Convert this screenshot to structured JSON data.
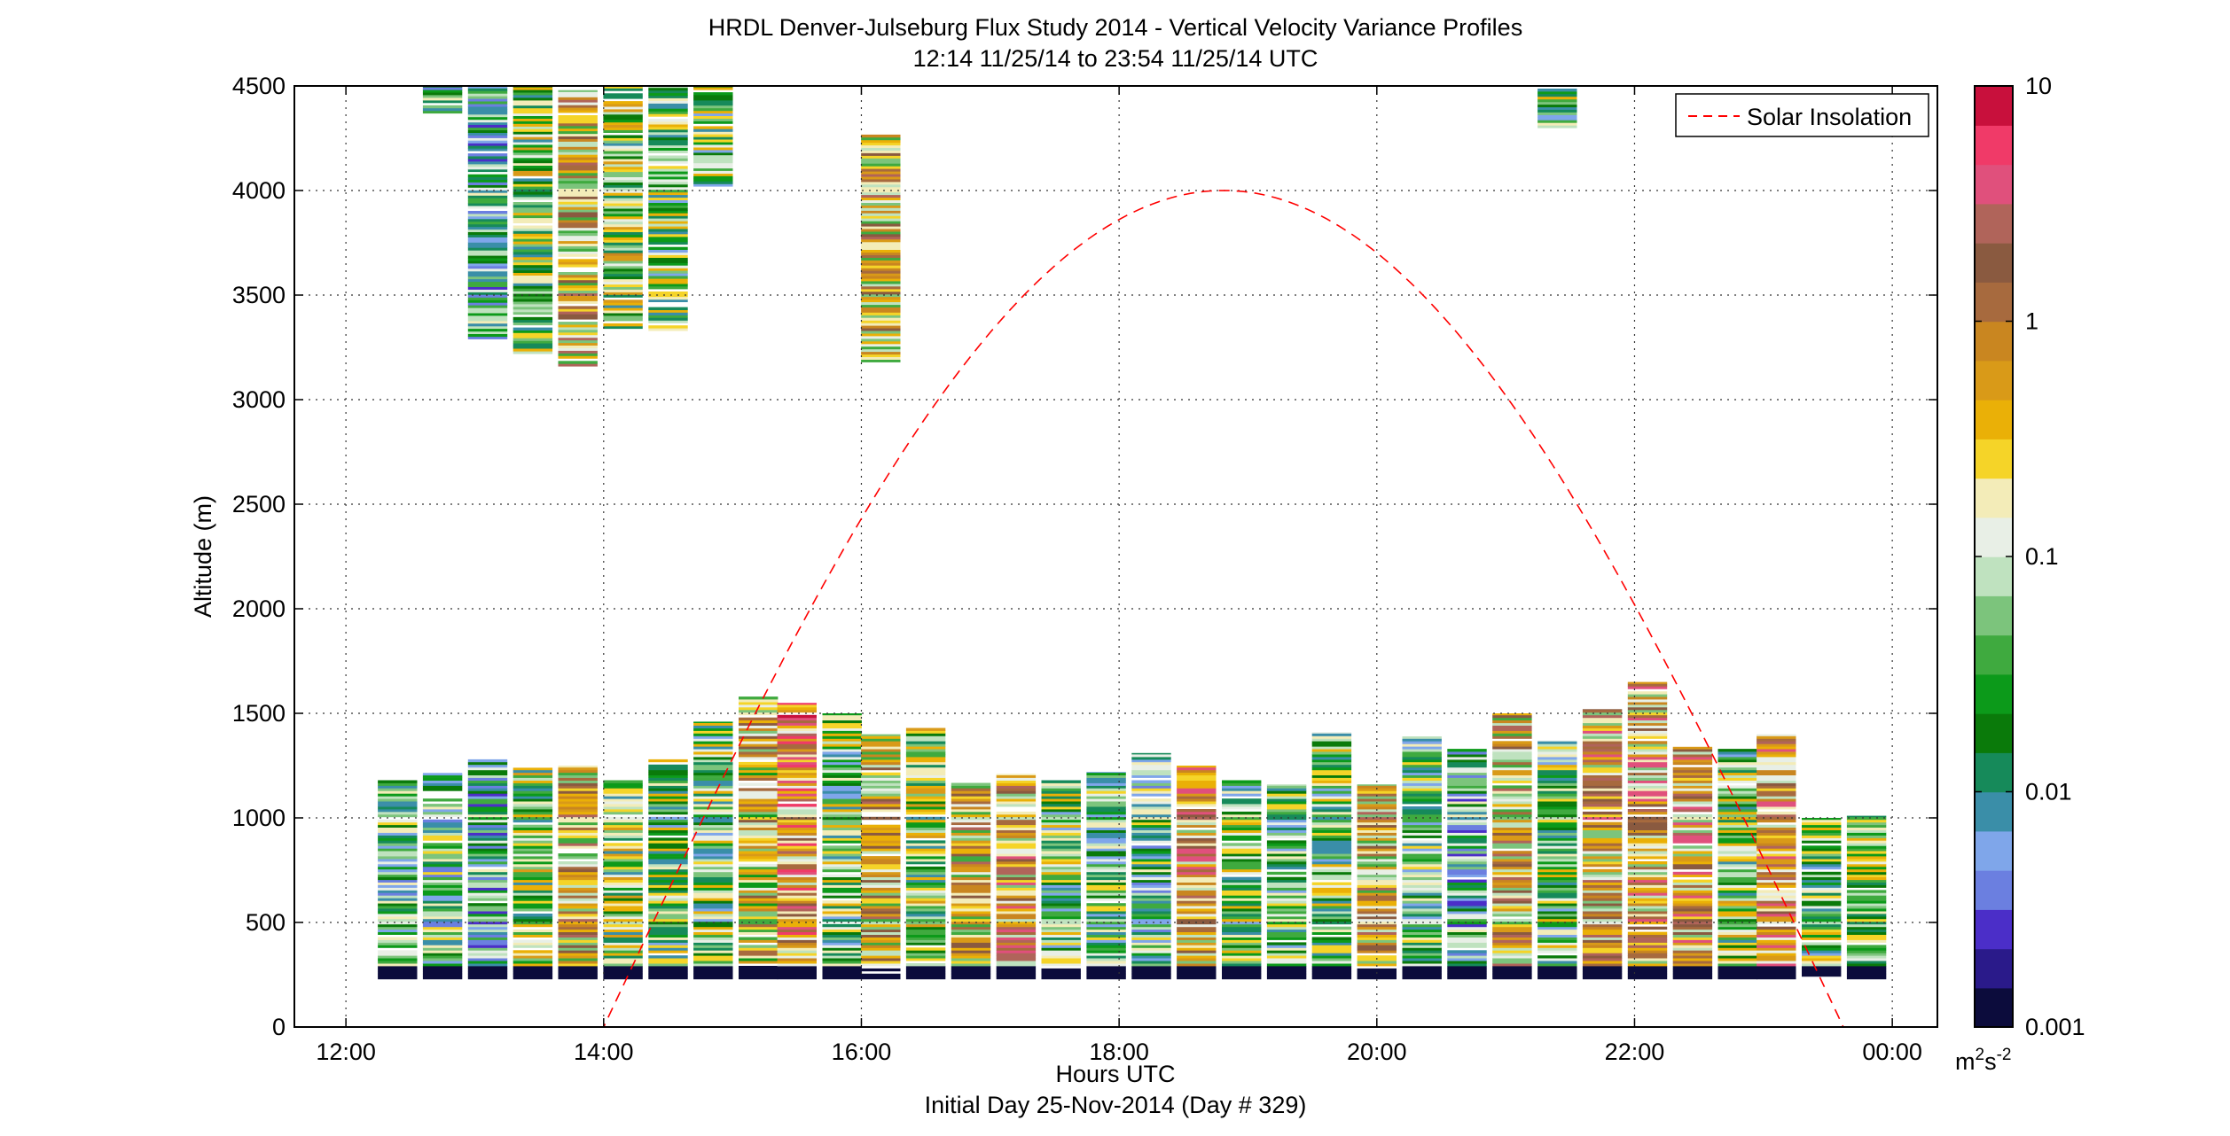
{
  "chart_data": {
    "type": "heatmap",
    "title_line1": "HRDL Denver-Julseburg Flux Study 2014 - Vertical Velocity Variance Profiles",
    "title_line2": "12:14 11/25/14 to 23:54 11/25/14  UTC",
    "xlabel": "Hours UTC",
    "xlabel_sub": "Initial Day 25-Nov-2014 (Day # 329)",
    "ylabel": "Altitude (m)",
    "xlim": [
      11.6,
      24.35
    ],
    "ylim": [
      0,
      4500
    ],
    "x_ticks": [
      12,
      14,
      16,
      18,
      20,
      22,
      24
    ],
    "x_tick_labels": [
      "12:00",
      "14:00",
      "16:00",
      "18:00",
      "20:00",
      "22:00",
      "00:00"
    ],
    "y_ticks": [
      0,
      500,
      1000,
      1500,
      2000,
      2500,
      3000,
      3500,
      4000,
      4500
    ],
    "y_tick_labels": [
      "0",
      "500",
      "1000",
      "1500",
      "2000",
      "2500",
      "3000",
      "3500",
      "4000",
      "4500"
    ],
    "grid": true,
    "legend": {
      "position": "top-right",
      "entries": [
        {
          "label": "Solar Insolation",
          "color": "#ff0000",
          "style": "dashed"
        }
      ]
    },
    "colorbar": {
      "scale": "log",
      "range": [
        0.001,
        10
      ],
      "tick_values": [
        0.001,
        0.01,
        0.1,
        1,
        10
      ],
      "tick_labels": [
        "0.001",
        "0.01",
        "0.1",
        "1",
        "10"
      ],
      "unit": "m2s-2",
      "colors": [
        "#0c0c3c",
        "#2a1a8a",
        "#4b2ec8",
        "#6b7fe0",
        "#7fa6ea",
        "#3a8ea8",
        "#168a5a",
        "#0a7a0a",
        "#0c9a1a",
        "#3faa3f",
        "#7cc47c",
        "#bfe2bf",
        "#e8efe6",
        "#f3ecb8",
        "#f5d428",
        "#eab007",
        "#d99a18",
        "#c98620",
        "#a76a3e",
        "#8a5a40",
        "#b0645a",
        "#e0507c",
        "#f03a68",
        "#c8103c"
      ]
    },
    "heatmap_x_range": [
      12.233,
      23.9
    ],
    "column_width_hours": 0.333,
    "solar_insolation": {
      "peak_hour": 18.78,
      "peak_altitude_equiv": 4000,
      "zero_crossings_hours": [
        14.0,
        23.62
      ]
    },
    "columns": [
      {
        "x": 12.4,
        "lower_top": 1180,
        "upper": null,
        "median": 0.035
      },
      {
        "x": 12.75,
        "lower_top": 1215,
        "upper": [
          4370,
          4500
        ],
        "median": 0.03
      },
      {
        "x": 13.1,
        "lower_top": 1280,
        "upper": [
          3290,
          4500
        ],
        "median": 0.02
      },
      {
        "x": 13.45,
        "lower_top": 1240,
        "upper": [
          3220,
          4500
        ],
        "median": 0.06
      },
      {
        "x": 13.8,
        "lower_top": 1250,
        "upper": [
          3160,
          4480
        ],
        "median": 0.3
      },
      {
        "x": 14.15,
        "lower_top": 1190,
        "upper": [
          3340,
          4500
        ],
        "median": 0.08
      },
      {
        "x": 14.5,
        "lower_top": 1280,
        "upper": [
          3330,
          4500
        ],
        "median": 0.05
      },
      {
        "x": 14.85,
        "lower_top": 1460,
        "upper": [
          4020,
          4500
        ],
        "median": 0.05
      },
      {
        "x": 15.2,
        "lower_top": 1580,
        "upper": null,
        "median": 0.2
      },
      {
        "x": 15.5,
        "lower_top": 1550,
        "upper": null,
        "median": 0.8
      },
      {
        "x": 15.85,
        "lower_top": 1500,
        "upper": null,
        "median": 0.05
      },
      {
        "x": 16.15,
        "lower_top": 1400,
        "upper": [
          3180,
          4280
        ],
        "median": 0.3
      },
      {
        "x": 16.5,
        "lower_top": 1430,
        "upper": null,
        "median": 0.08
      },
      {
        "x": 16.85,
        "lower_top": 1180,
        "upper": null,
        "median": 0.3
      },
      {
        "x": 17.2,
        "lower_top": 1210,
        "upper": null,
        "median": 0.5
      },
      {
        "x": 17.55,
        "lower_top": 1180,
        "upper": null,
        "median": 0.05
      },
      {
        "x": 17.9,
        "lower_top": 1220,
        "upper": null,
        "median": 0.04
      },
      {
        "x": 18.25,
        "lower_top": 1310,
        "upper": null,
        "median": 0.03
      },
      {
        "x": 18.6,
        "lower_top": 1250,
        "upper": null,
        "median": 0.5
      },
      {
        "x": 18.95,
        "lower_top": 1180,
        "upper": null,
        "median": 0.05
      },
      {
        "x": 19.3,
        "lower_top": 1160,
        "upper": null,
        "median": 0.04
      },
      {
        "x": 19.65,
        "lower_top": 1410,
        "upper": null,
        "median": 0.05
      },
      {
        "x": 20.0,
        "lower_top": 1160,
        "upper": null,
        "median": 0.3
      },
      {
        "x": 20.35,
        "lower_top": 1390,
        "upper": null,
        "median": 0.04
      },
      {
        "x": 20.7,
        "lower_top": 1330,
        "upper": null,
        "median": 0.02
      },
      {
        "x": 21.05,
        "lower_top": 1500,
        "upper": null,
        "median": 0.3
      },
      {
        "x": 21.4,
        "lower_top": 1370,
        "upper": [
          4300,
          4500
        ],
        "median": 0.05
      },
      {
        "x": 21.75,
        "lower_top": 1520,
        "upper": null,
        "median": 0.4
      },
      {
        "x": 22.1,
        "lower_top": 1650,
        "upper": null,
        "median": 0.5
      },
      {
        "x": 22.45,
        "lower_top": 1340,
        "upper": null,
        "median": 0.5
      },
      {
        "x": 22.8,
        "lower_top": 1330,
        "upper": null,
        "median": 0.06
      },
      {
        "x": 23.1,
        "lower_top": 1400,
        "upper": null,
        "median": 0.6
      },
      {
        "x": 23.45,
        "lower_top": 1000,
        "upper": null,
        "median": 0.05
      },
      {
        "x": 23.8,
        "lower_top": 1010,
        "upper": null,
        "median": 0.1
      }
    ]
  }
}
